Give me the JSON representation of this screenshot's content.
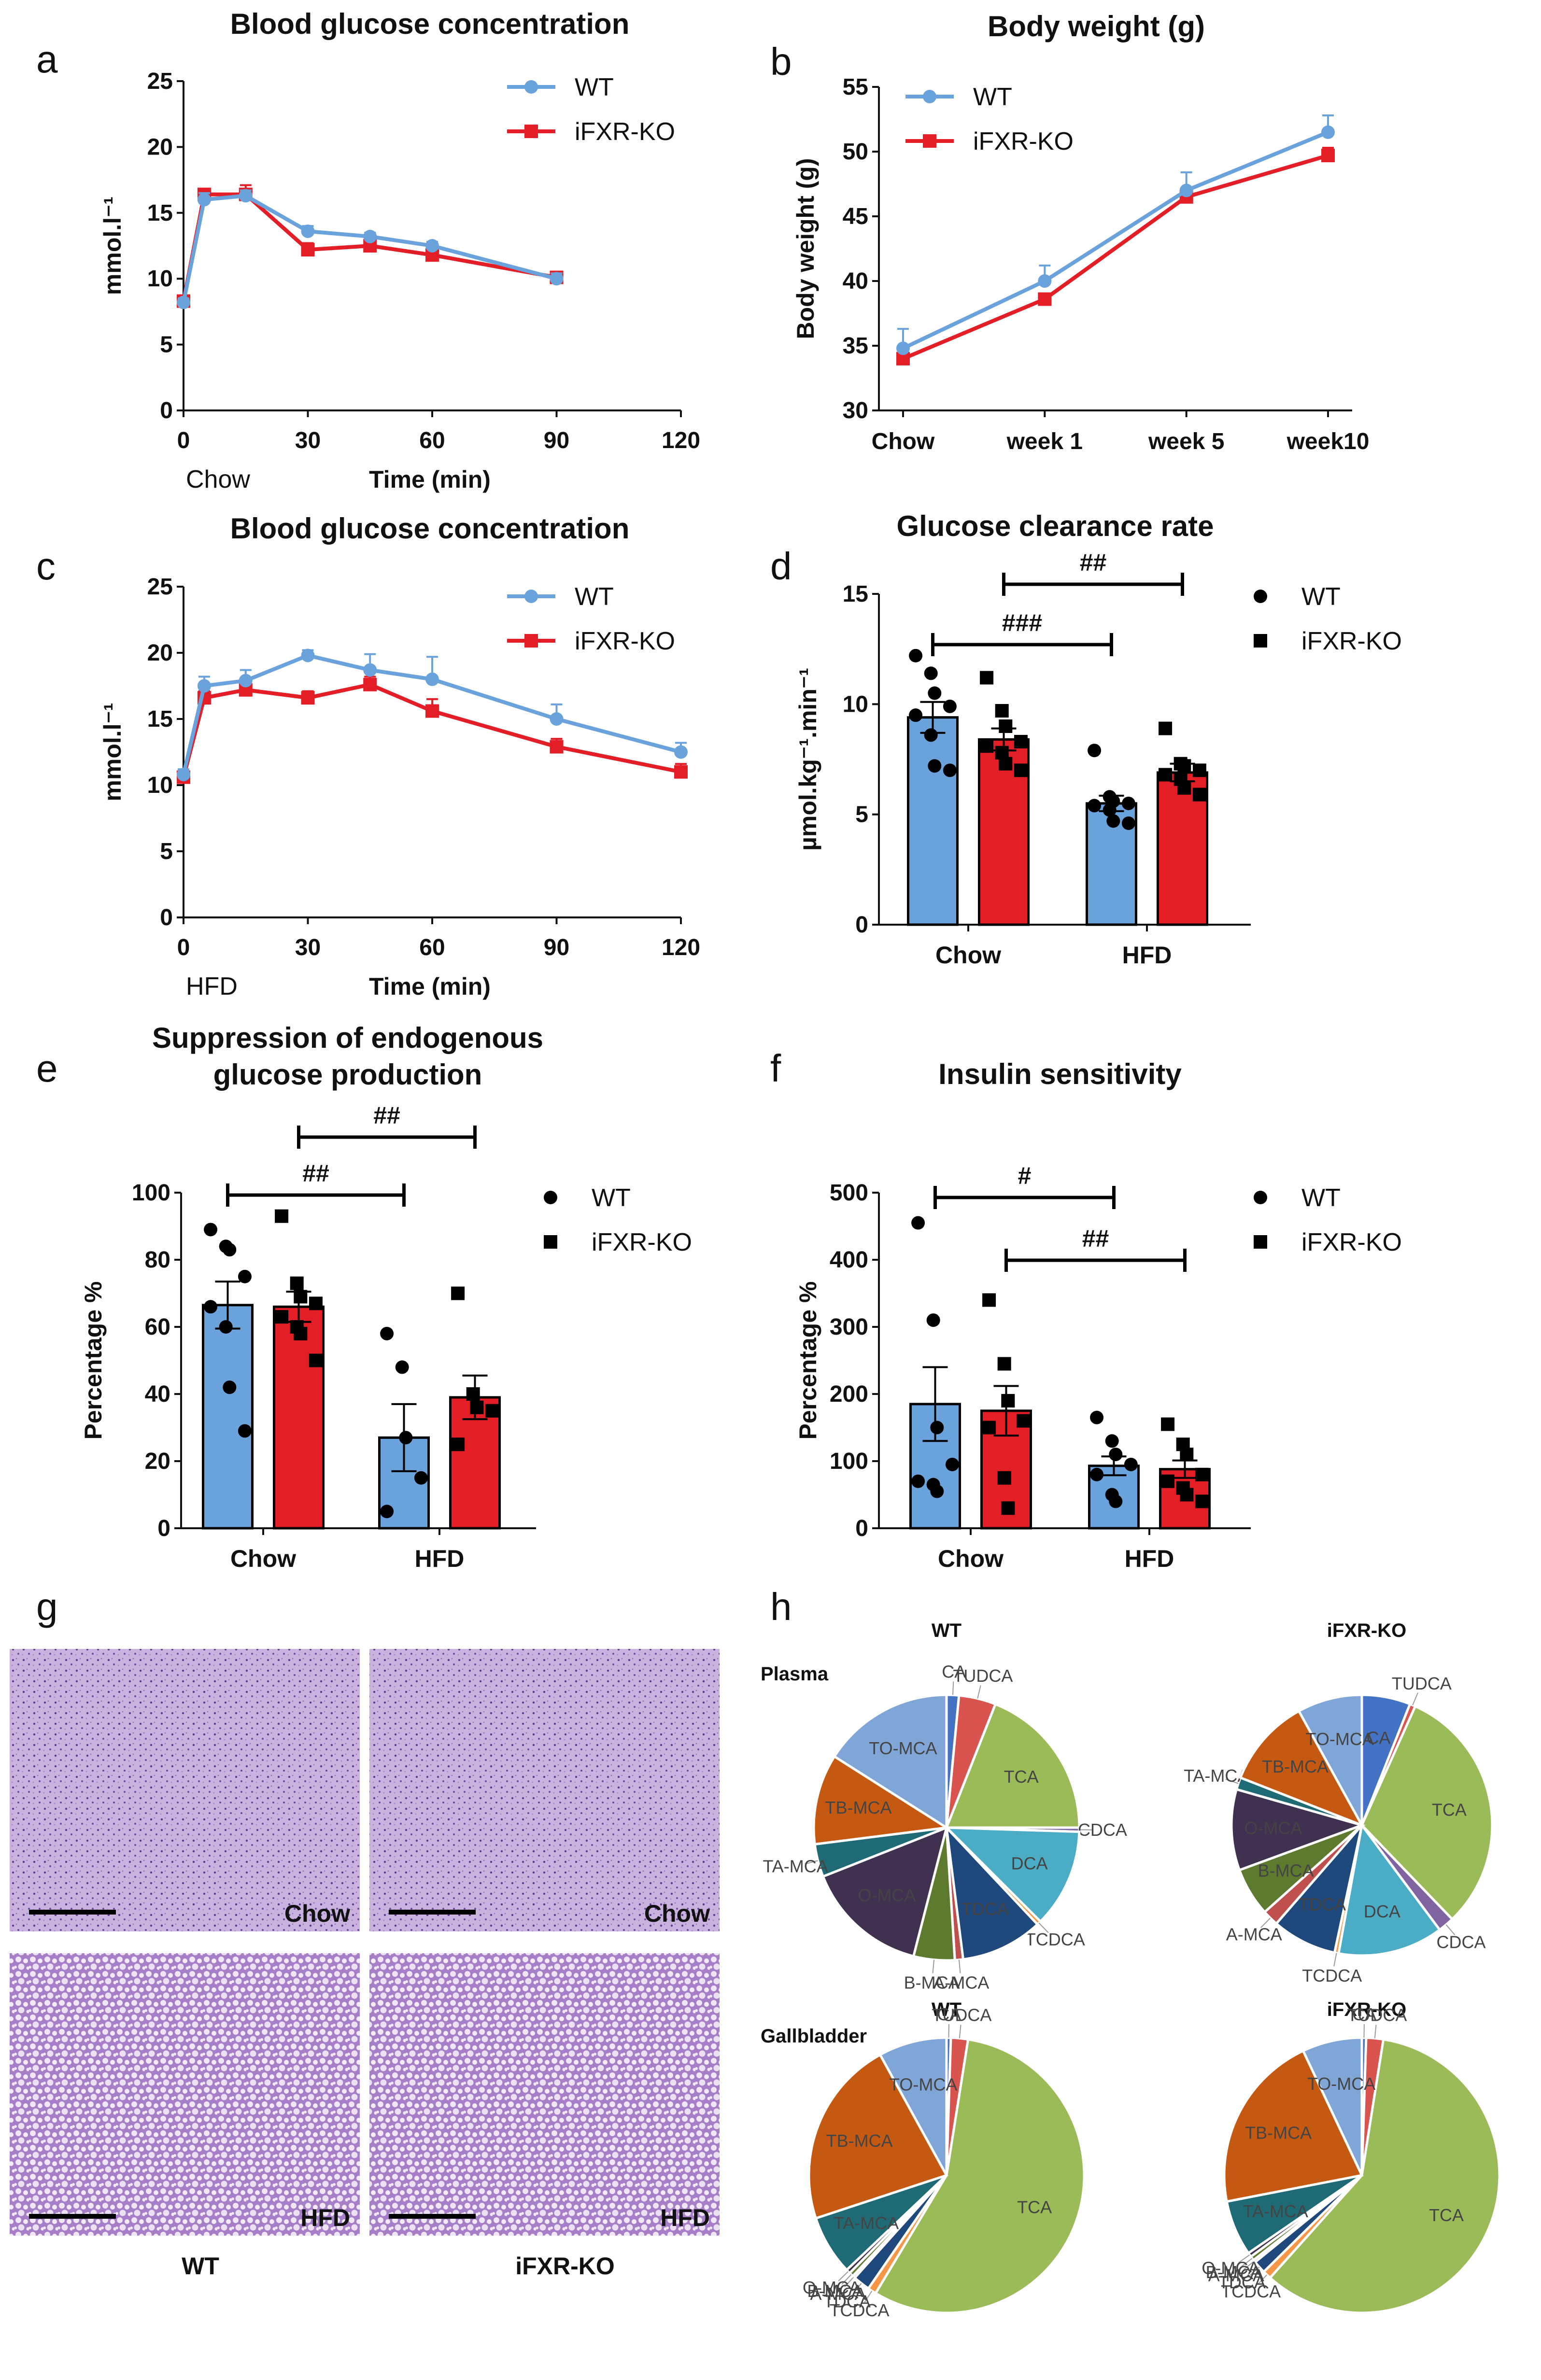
{
  "colors": {
    "wt": "#6aa3dc",
    "ko": "#e31e26",
    "axis": "#111111",
    "tissue": "#b59ad0"
  },
  "panel_letters": [
    "a",
    "b",
    "c",
    "d",
    "e",
    "f",
    "g",
    "h"
  ],
  "chart_data": [
    {
      "id": "a",
      "type": "line",
      "title": "Blood glucose concentration",
      "xlabel": "Time (min)",
      "ylabel": "mmol.l⁻¹",
      "corner_label": "Chow",
      "xlim": [
        0,
        120
      ],
      "ylim": [
        0,
        25
      ],
      "xticks": [
        0,
        30,
        60,
        90,
        120
      ],
      "yticks": [
        0,
        5,
        10,
        15,
        20,
        25
      ],
      "x": [
        0,
        5,
        15,
        30,
        45,
        60,
        90
      ],
      "series": [
        {
          "name": "WT",
          "values": [
            8.2,
            16.0,
            16.3,
            13.6,
            13.2,
            12.5,
            10.0
          ],
          "err": [
            0.3,
            0.5,
            0.4,
            0.4,
            0.3,
            0.3,
            0.4
          ]
        },
        {
          "name": "iFXR-KO",
          "values": [
            8.3,
            16.4,
            16.4,
            12.2,
            12.5,
            11.8,
            10.1
          ],
          "err": [
            0.3,
            0.4,
            0.7,
            0.5,
            0.4,
            0.3,
            0.4
          ]
        }
      ]
    },
    {
      "id": "b",
      "type": "line",
      "title": "Body weight (g)",
      "xlabel": "",
      "ylabel": "Body weight (g)",
      "ylim": [
        30,
        55
      ],
      "yticks": [
        30,
        35,
        40,
        45,
        50,
        55
      ],
      "categories": [
        "Chow",
        "week 1",
        "week 5",
        "week10"
      ],
      "series": [
        {
          "name": "WT",
          "values": [
            34.8,
            40.0,
            47.0,
            51.5
          ],
          "err": [
            1.5,
            1.2,
            1.4,
            1.3
          ]
        },
        {
          "name": "iFXR-KO",
          "values": [
            34.0,
            38.6,
            46.5,
            49.7
          ],
          "err": [
            0.5,
            0.4,
            0.5,
            0.6
          ]
        }
      ]
    },
    {
      "id": "c",
      "type": "line",
      "title": "Blood glucose concentration",
      "xlabel": "Time (min)",
      "ylabel": "mmol.l⁻¹",
      "corner_label": "HFD",
      "xlim": [
        0,
        120
      ],
      "ylim": [
        0,
        25
      ],
      "xticks": [
        0,
        30,
        60,
        90,
        120
      ],
      "yticks": [
        0,
        5,
        10,
        15,
        20,
        25
      ],
      "x": [
        0,
        5,
        15,
        30,
        45,
        60,
        90,
        120
      ],
      "series": [
        {
          "name": "WT",
          "values": [
            10.8,
            17.5,
            17.9,
            19.8,
            18.7,
            18.0,
            15.0,
            12.5
          ],
          "err": [
            0.4,
            0.7,
            0.8,
            0.4,
            1.2,
            1.7,
            1.1,
            0.7
          ]
        },
        {
          "name": "iFXR-KO",
          "values": [
            10.6,
            16.6,
            17.2,
            16.6,
            17.6,
            15.6,
            12.9,
            11.0
          ],
          "err": [
            0.4,
            0.5,
            0.5,
            0.5,
            0.6,
            0.9,
            0.6,
            0.6
          ]
        }
      ]
    },
    {
      "id": "d",
      "type": "bar",
      "title": "Glucose clearance rate",
      "ylabel": "µmol.kg⁻¹.min⁻¹",
      "ylim": [
        0,
        15
      ],
      "yticks": [
        0,
        5,
        10,
        15
      ],
      "categories": [
        "Chow",
        "HFD"
      ],
      "series": [
        {
          "name": "WT",
          "values": [
            9.4,
            5.5
          ],
          "err": [
            0.7,
            0.35
          ],
          "points": [
            [
              12.2,
              11.4,
              10.5,
              9.9,
              9.5,
              8.6,
              7.2,
              7.0
            ],
            [
              7.9,
              5.8,
              5.6,
              5.5,
              5.4,
              5.2,
              4.7,
              4.6
            ]
          ]
        },
        {
          "name": "iFXR-KO",
          "values": [
            8.4,
            6.9
          ],
          "err": [
            0.5,
            0.4
          ],
          "points": [
            [
              11.2,
              9.7,
              9.0,
              8.3,
              8.1,
              7.8,
              7.3,
              7.0
            ],
            [
              8.9,
              7.3,
              7.2,
              7.0,
              6.8,
              6.6,
              6.2,
              5.9
            ]
          ]
        }
      ],
      "brackets": [
        {
          "from": 1,
          "to": 2,
          "label": "###"
        },
        {
          "from": 1.5,
          "to": 2.5,
          "label": "##"
        }
      ]
    },
    {
      "id": "e",
      "type": "bar",
      "title": "Suppression of endogenous glucose production",
      "title_lines": [
        "Suppression of endogenous",
        "glucose production"
      ],
      "ylabel": "Percentage %",
      "ylim": [
        0,
        100
      ],
      "yticks": [
        0,
        20,
        40,
        60,
        80,
        100
      ],
      "categories": [
        "Chow",
        "HFD"
      ],
      "series": [
        {
          "name": "WT",
          "values": [
            66.5,
            27.0
          ],
          "err": [
            7.0,
            10.0
          ],
          "points": [
            [
              89,
              84,
              83,
              75,
              66,
              60,
              42,
              29
            ],
            [
              58,
              48,
              27,
              15,
              5
            ]
          ]
        },
        {
          "name": "iFXR-KO",
          "values": [
            66.0,
            39.0
          ],
          "err": [
            4.5,
            6.5
          ],
          "points": [
            [
              93,
              73,
              69,
              67,
              63,
              60,
              58,
              50
            ],
            [
              70,
              40,
              36,
              35,
              25
            ]
          ]
        }
      ],
      "brackets": [
        {
          "from": 1,
          "to": 2,
          "label": "##"
        },
        {
          "from": 1.5,
          "to": 2.5,
          "label": "##"
        }
      ]
    },
    {
      "id": "f",
      "type": "bar",
      "title": "Insulin sensitivity",
      "ylabel": "Percentage %",
      "ylim": [
        0,
        500
      ],
      "yticks": [
        0,
        100,
        200,
        300,
        400,
        500
      ],
      "categories": [
        "Chow",
        "HFD"
      ],
      "series": [
        {
          "name": "WT",
          "values": [
            185,
            93
          ],
          "err": [
            55,
            14
          ],
          "points": [
            [
              455,
              310,
              150,
              95,
              70,
              65,
              55
            ],
            [
              165,
              130,
              110,
              95,
              80,
              50,
              40
            ]
          ]
        },
        {
          "name": "iFXR-KO",
          "values": [
            175,
            88
          ],
          "err": [
            37,
            13
          ],
          "points": [
            [
              340,
              245,
              190,
              160,
              150,
              75,
              30
            ],
            [
              155,
              125,
              110,
              80,
              70,
              60,
              50,
              40
            ]
          ]
        }
      ],
      "brackets": [
        {
          "from": 1,
          "to": 2,
          "label": "#"
        },
        {
          "from": 1.5,
          "to": 2.5,
          "label": "##"
        }
      ]
    },
    {
      "id": "h",
      "type": "pie",
      "section_labels": [
        "Plasma",
        "Gallbladder"
      ],
      "pies": [
        {
          "title": "WT",
          "slices": [
            {
              "label": "CA",
              "value": 1.5,
              "color": "#4472c4"
            },
            {
              "label": "TUDCA",
              "value": 4.5,
              "color": "#d9534f"
            },
            {
              "label": "TCA",
              "value": 19,
              "color": "#9bbb59"
            },
            {
              "label": "CDCA",
              "value": 0.5,
              "color": "#8064a2"
            },
            {
              "label": "DCA",
              "value": 12,
              "color": "#4bacc6"
            },
            {
              "label": "TCDCA",
              "value": 0.5,
              "color": "#f79646"
            },
            {
              "label": "TDCA",
              "value": 10,
              "color": "#1f497d"
            },
            {
              "label": "A-MCA",
              "value": 1,
              "color": "#c0504d"
            },
            {
              "label": "B-MCA",
              "value": 5,
              "color": "#5e7a2e"
            },
            {
              "label": "O-MCA",
              "value": 15,
              "color": "#403151"
            },
            {
              "label": "TA-MCA",
              "value": 4,
              "color": "#1f6b75"
            },
            {
              "label": "TB-MCA",
              "value": 11,
              "color": "#c65911"
            },
            {
              "label": "TO-MCA",
              "value": 16,
              "color": "#7fa6d7"
            }
          ]
        },
        {
          "title": "iFXR-KO",
          "slices": [
            {
              "label": "CA",
              "value": 6,
              "color": "#4472c4"
            },
            {
              "label": "TUDCA",
              "value": 0.7,
              "color": "#d9534f"
            },
            {
              "label": "TCA",
              "value": 31,
              "color": "#9bbb59"
            },
            {
              "label": "CDCA",
              "value": 2,
              "color": "#8064a2"
            },
            {
              "label": "DCA",
              "value": 13,
              "color": "#4bacc6"
            },
            {
              "label": "TCDCA",
              "value": 0.5,
              "color": "#f79646"
            },
            {
              "label": "TDCA",
              "value": 8,
              "color": "#1f497d"
            },
            {
              "label": "A-MCA",
              "value": 2,
              "color": "#c0504d"
            },
            {
              "label": "B-MCA",
              "value": 6,
              "color": "#5e7a2e"
            },
            {
              "label": "O-MCA",
              "value": 10,
              "color": "#403151"
            },
            {
              "label": "TA-MCA",
              "value": 1.5,
              "color": "#1f6b75"
            },
            {
              "label": "TB-MCA",
              "value": 11,
              "color": "#c65911"
            },
            {
              "label": "TO-MCA",
              "value": 8,
              "color": "#7fa6d7"
            }
          ]
        },
        {
          "title": "WT",
          "slices": [
            {
              "label": "CA",
              "value": 0.5,
              "color": "#4472c4"
            },
            {
              "label": "TUDCA",
              "value": 2,
              "color": "#d9534f"
            },
            {
              "label": "TCA",
              "value": 56,
              "color": "#9bbb59"
            },
            {
              "label": "TCDCA",
              "value": 1,
              "color": "#f79646"
            },
            {
              "label": "TDCA",
              "value": 2,
              "color": "#1f497d"
            },
            {
              "label": "A-MCA",
              "value": 0.3,
              "color": "#c0504d"
            },
            {
              "label": "B-MCA",
              "value": 0.5,
              "color": "#5e7a2e"
            },
            {
              "label": "O-MCA",
              "value": 0.5,
              "color": "#403151"
            },
            {
              "label": "TA-MCA",
              "value": 7,
              "color": "#1f6b75"
            },
            {
              "label": "TB-MCA",
              "value": 22,
              "color": "#c65911"
            },
            {
              "label": "TO-MCA",
              "value": 8,
              "color": "#7fa6d7"
            }
          ]
        },
        {
          "title": "iFXR-KO",
          "slices": [
            {
              "label": "CA",
              "value": 0.5,
              "color": "#4472c4"
            },
            {
              "label": "TUDCA",
              "value": 2,
              "color": "#d9534f"
            },
            {
              "label": "TCA",
              "value": 59,
              "color": "#9bbb59"
            },
            {
              "label": "TCDCA",
              "value": 1,
              "color": "#f79646"
            },
            {
              "label": "TDCA",
              "value": 1.5,
              "color": "#1f497d"
            },
            {
              "label": "A-MCA",
              "value": 0.3,
              "color": "#c0504d"
            },
            {
              "label": "B-MCA",
              "value": 0.5,
              "color": "#5e7a2e"
            },
            {
              "label": "O-MCA",
              "value": 0.5,
              "color": "#403151"
            },
            {
              "label": "TA-MCA",
              "value": 6.5,
              "color": "#1f6b75"
            },
            {
              "label": "TB-MCA",
              "value": 21,
              "color": "#c65911"
            },
            {
              "label": "TO-MCA",
              "value": 7,
              "color": "#7fa6d7"
            }
          ]
        }
      ]
    }
  ],
  "histology": {
    "tiles": [
      "Chow",
      "Chow",
      "HFD",
      "HFD"
    ],
    "columns": [
      "WT",
      "iFXR-KO"
    ]
  }
}
